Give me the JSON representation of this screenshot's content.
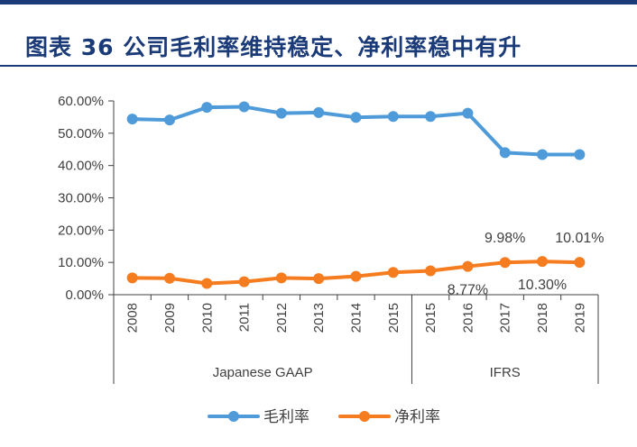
{
  "header": {
    "title": "图表 36   公司毛利率维持稳定、净利率稳中有升"
  },
  "colors": {
    "title": "#1a3a78",
    "gross_margin": "#4f9bd9",
    "net_margin": "#f57c1f",
    "axis": "#404040"
  },
  "chart_data": {
    "type": "line",
    "categories": [
      "2008",
      "2009",
      "2010",
      "2011",
      "2012",
      "2013",
      "2014",
      "2015",
      "2015",
      "2016",
      "2017",
      "2018",
      "2019"
    ],
    "groups": [
      {
        "label": "Japanese GAAP",
        "from": 0,
        "to": 7
      },
      {
        "label": "IFRS",
        "from": 8,
        "to": 12
      }
    ],
    "series": [
      {
        "name": "毛利率",
        "color": "#4f9bd9",
        "values": [
          54.4,
          54.1,
          58.0,
          58.2,
          56.2,
          56.4,
          54.9,
          55.2,
          55.2,
          56.2,
          44.0,
          43.4,
          43.4
        ]
      },
      {
        "name": "净利率",
        "color": "#f57c1f",
        "values": [
          5.2,
          5.1,
          3.5,
          4.0,
          5.2,
          5.0,
          5.7,
          6.9,
          7.4,
          8.77,
          9.98,
          10.3,
          10.01
        ]
      }
    ],
    "yticks": [
      "60.00%",
      "50.00%",
      "40.00%",
      "30.00%",
      "20.00%",
      "10.00%",
      "0.00%"
    ],
    "ylim": [
      0,
      60
    ],
    "data_labels": [
      {
        "series": 1,
        "index": 9,
        "text": "8.77%",
        "pos": "below"
      },
      {
        "series": 1,
        "index": 10,
        "text": "9.98%",
        "pos": "above"
      },
      {
        "series": 1,
        "index": 11,
        "text": "10.30%",
        "pos": "below"
      },
      {
        "series": 1,
        "index": 12,
        "text": "10.01%",
        "pos": "above"
      }
    ],
    "legend": [
      {
        "name": "毛利率",
        "color": "#4f9bd9"
      },
      {
        "name": "净利率",
        "color": "#f57c1f"
      }
    ],
    "legend_position": "bottom-center",
    "grid": false
  }
}
